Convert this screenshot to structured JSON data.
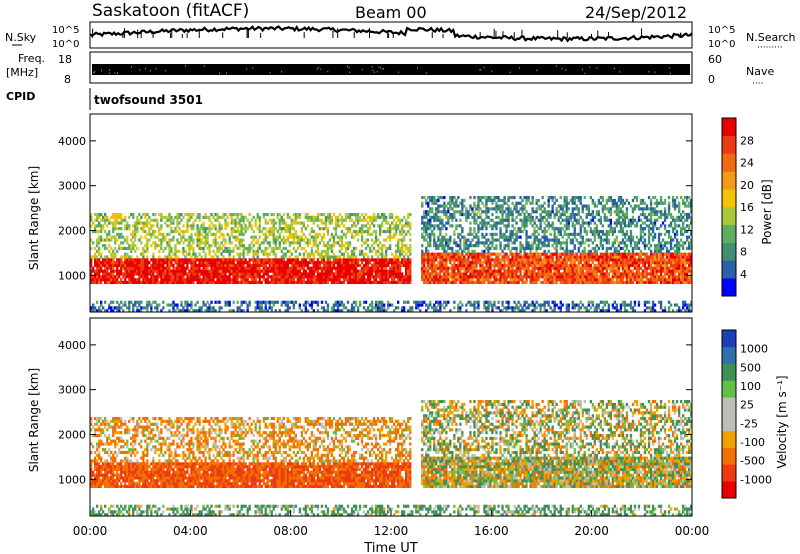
{
  "header": {
    "station": "Saskatoon (fitACF)",
    "beam": "Beam 00",
    "date": "24/Sep/2012"
  },
  "noise_panel": {
    "left_label": "N.Sky",
    "right_label": "N.Search",
    "right_dots": "·········",
    "tick_top": "10^5",
    "tick_bottom": "10^0"
  },
  "freq_panel": {
    "left_label_1": "Freq.",
    "left_label_2": "[MHz]",
    "right_label": "Nave",
    "right_dots": "····",
    "freq_ticks": [
      "18",
      "8"
    ],
    "nave_ticks": [
      "60",
      "0"
    ]
  },
  "cpid": {
    "label": "CPID",
    "value": "twofsound 3501"
  },
  "power_panel": {
    "ylabel": "Slant Range [km]",
    "yticks": [
      "1000",
      "2000",
      "3000",
      "4000"
    ],
    "colorbar_label": "Power [dB]",
    "colorbar_ticks": [
      "4",
      "8",
      "12",
      "16",
      "20",
      "24",
      "28"
    ],
    "colorbar_colors": [
      "#0000ff",
      "#2b5fa8",
      "#3f8f70",
      "#5fae5f",
      "#a8c83a",
      "#f2c400",
      "#f49a1a",
      "#f26a12",
      "#ee3a12",
      "#e80000"
    ]
  },
  "velocity_panel": {
    "ylabel": "Slant Range [km]",
    "yticks": [
      "1000",
      "2000",
      "3000",
      "4000"
    ],
    "colorbar_label": "Velocity [m s⁻¹]",
    "colorbar_ticks": [
      "1000",
      "500",
      "100",
      "25",
      "-25",
      "-100",
      "-500",
      "-1000"
    ],
    "colorbar_colors": [
      "#1c3fb8",
      "#2f6fae",
      "#3f8f5a",
      "#62c042",
      "#bfbfb9",
      "#bfbfb9",
      "#f2a000",
      "#f07000",
      "#ee3a12",
      "#e80000"
    ]
  },
  "xaxis": {
    "label": "Time UT",
    "ticks": [
      "00:00",
      "04:00",
      "08:00",
      "12:00",
      "16:00",
      "20:00",
      "00:00"
    ]
  },
  "chart_data": {
    "type": "heatmap",
    "title": "Saskatoon (fitACF) Beam 00 24/Sep/2012",
    "xlabel": "Time UT",
    "ylabel": "Slant Range [km]",
    "xlim": [
      0,
      24
    ],
    "ylim": [
      180,
      4600
    ],
    "power_range": [
      0,
      32
    ],
    "velocity_range": [
      -1000,
      1000
    ],
    "features": [
      {
        "name": "strong low-range band",
        "t_start": 0,
        "t_end": 12.8,
        "range_km": [
          800,
          1400
        ],
        "power_db": 30,
        "velocity_ms": -500
      },
      {
        "name": "upper arc",
        "t_start": 0,
        "t_end": 12.8,
        "range_km": [
          1400,
          2400
        ],
        "power_db": 14,
        "velocity_ms": -100
      },
      {
        "name": "evening band",
        "t_start": 13.2,
        "t_end": 24,
        "range_km": [
          800,
          1500
        ],
        "power_db": 26,
        "velocity_ms": 0
      },
      {
        "name": "evening upper scatter",
        "t_start": 13.2,
        "t_end": 24,
        "range_km": [
          1500,
          2800
        ],
        "power_db": 8,
        "velocity_ms": 0
      },
      {
        "name": "near-range scatter",
        "t_start": 0,
        "t_end": 24,
        "range_km": [
          200,
          450
        ],
        "power_db": 6,
        "velocity_ms": 100
      }
    ]
  }
}
